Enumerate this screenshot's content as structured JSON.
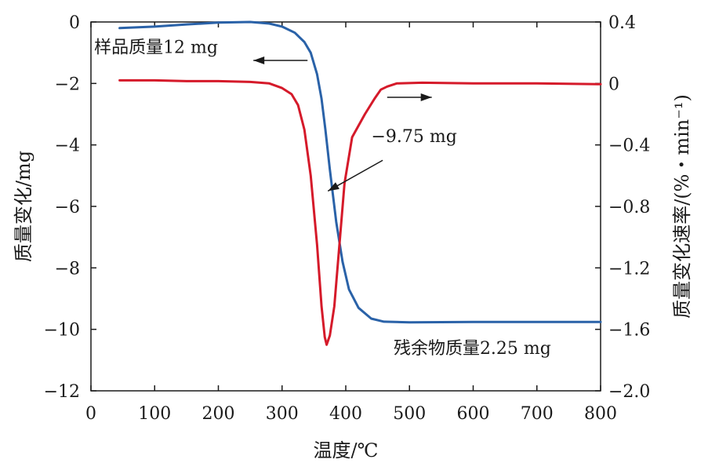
{
  "chart_data": {
    "type": "line",
    "xlabel": "温度/℃",
    "ylabel_left": "质量变化/mg",
    "ylabel_right": "质量变化速率/(%・min⁻¹)",
    "xlim": [
      0,
      800
    ],
    "ylim_left": [
      -12,
      0
    ],
    "ylim_right": [
      -2.0,
      0.4
    ],
    "x_ticks": [
      0,
      100,
      200,
      300,
      400,
      500,
      600,
      700,
      800
    ],
    "y_left_ticks": [
      0,
      -2,
      -4,
      -6,
      -8,
      -10,
      -12
    ],
    "y_left_tick_labels": [
      "0",
      "−2",
      "−4",
      "−6",
      "−8",
      "−10",
      "−12"
    ],
    "y_right_ticks": [
      0.4,
      0,
      -0.4,
      -0.8,
      -1.2,
      -1.6,
      -2.0
    ],
    "y_right_tick_labels": [
      "0.4",
      "0",
      "−0.4",
      "−0.8",
      "−1.2",
      "−1.6",
      "−2.0"
    ],
    "grid": false,
    "series": [
      {
        "axis": "left",
        "color": "#2a62a8",
        "x": [
          45,
          100,
          150,
          200,
          250,
          280,
          300,
          320,
          335,
          345,
          355,
          362,
          368,
          375,
          385,
          395,
          405,
          420,
          440,
          460,
          500,
          600,
          700,
          800
        ],
        "y": [
          -0.2,
          -0.15,
          -0.08,
          -0.02,
          0.0,
          -0.05,
          -0.15,
          -0.35,
          -0.65,
          -1.0,
          -1.7,
          -2.5,
          -3.5,
          -4.8,
          -6.5,
          -7.8,
          -8.7,
          -9.3,
          -9.65,
          -9.75,
          -9.77,
          -9.76,
          -9.76,
          -9.76
        ]
      },
      {
        "axis": "right",
        "color": "#d51a2a",
        "x": [
          45,
          100,
          150,
          200,
          250,
          280,
          300,
          315,
          325,
          335,
          345,
          355,
          362,
          367,
          370,
          375,
          382,
          390,
          398,
          410,
          430,
          445,
          455,
          465,
          480,
          520,
          600,
          700,
          800
        ],
        "y": [
          0.02,
          0.02,
          0.015,
          0.015,
          0.01,
          0.0,
          -0.03,
          -0.07,
          -0.14,
          -0.3,
          -0.6,
          -1.05,
          -1.45,
          -1.65,
          -1.7,
          -1.64,
          -1.45,
          -1.05,
          -0.65,
          -0.35,
          -0.2,
          -0.1,
          -0.04,
          -0.02,
          0.0,
          0.005,
          0.0,
          0.0,
          -0.005
        ]
      }
    ],
    "annotations": [
      {
        "text": "样品质量12 mg",
        "x": 5,
        "y_left": -0.8
      },
      {
        "text": "−9.75 mg",
        "x": 440,
        "y_left": -3.7
      },
      {
        "text": "残余物质量2.25 mg",
        "x": 475,
        "y_left": -10.6
      }
    ],
    "annotation_arrows": [
      {
        "from": [
          340,
          -1.25
        ],
        "to": [
          255,
          -1.25
        ],
        "axis": "left",
        "name": "arrow-to-left-axis"
      },
      {
        "from": [
          465,
          -2.45
        ],
        "to": [
          535,
          -2.45
        ],
        "axis": "left",
        "name": "arrow-to-right-axis"
      },
      {
        "from": [
          458,
          -4.5
        ],
        "to": [
          372,
          -5.5
        ],
        "axis": "left",
        "name": "arrow-mass-loss"
      }
    ]
  }
}
